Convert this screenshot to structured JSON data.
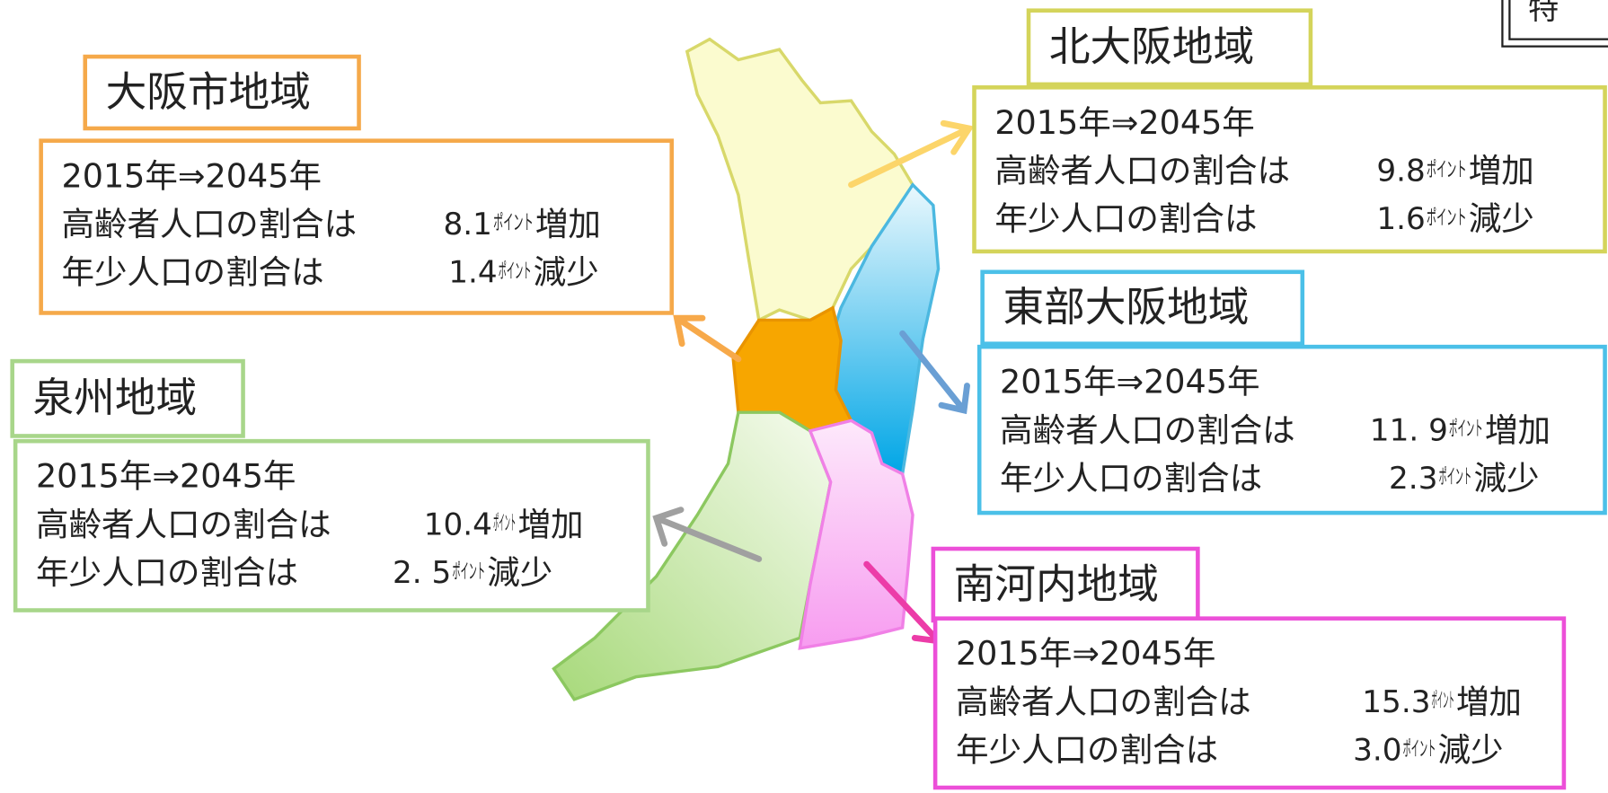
{
  "corner_label": "特",
  "regions": [
    {
      "name": "大阪市地域",
      "period": "2015年⇒2045年",
      "elderly_label": "高齢者人口の割合は",
      "elderly_value": "8.1",
      "elderly_unit": "ポイント",
      "elderly_change": "増加",
      "youth_label": "年少人口の割合は",
      "youth_value": "1.4",
      "youth_unit": "ポイント",
      "youth_change": "減少"
    },
    {
      "name": "北大阪地域",
      "period": "2015年⇒2045年",
      "elderly_label": "高齢者人口の割合は",
      "elderly_value": "9.8",
      "elderly_unit": "ポイント",
      "elderly_change": "増加",
      "youth_label": "年少人口の割合は",
      "youth_value": "1.6",
      "youth_unit": "ポイント",
      "youth_change": "減少"
    },
    {
      "name": "東部大阪地域",
      "period": "2015年⇒2045年",
      "elderly_label": "高齢者人口の割合は",
      "elderly_value": "11. 9",
      "elderly_unit": "ポイント",
      "elderly_change": "増加",
      "youth_label": "年少人口の割合は",
      "youth_value": "2.3",
      "youth_unit": "ポイント",
      "youth_change": "減少"
    },
    {
      "name": "泉州地域",
      "period": "2015年⇒2045年",
      "elderly_label": "高齢者人口の割合は",
      "elderly_value": "10.4",
      "elderly_unit": "ポイント",
      "elderly_change": "増加",
      "youth_label": "年少人口の割合は",
      "youth_value": "2. 5",
      "youth_unit": "ポイント",
      "youth_change": "減少"
    },
    {
      "name": "南河内地域",
      "period": "2015年⇒2045年",
      "elderly_label": "高齢者人口の割合は",
      "elderly_value": "15.3",
      "elderly_unit": "ポイント",
      "elderly_change": "増加",
      "youth_label": "年少人口の割合は",
      "youth_value": "3.0",
      "youth_unit": "ポイント",
      "youth_change": "減少"
    }
  ]
}
